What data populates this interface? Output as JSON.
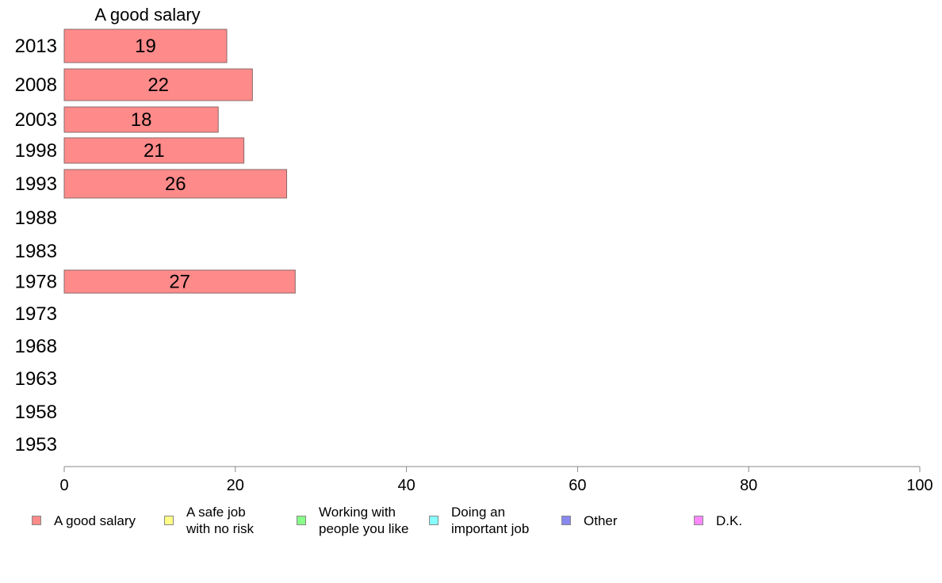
{
  "chart_data": {
    "type": "bar",
    "orientation": "horizontal",
    "title": "A good salary",
    "categories": [
      "2013",
      "2008",
      "2003",
      "1998",
      "1993",
      "1988",
      "1983",
      "1978",
      "1973",
      "1968",
      "1963",
      "1958",
      "1953"
    ],
    "series": [
      {
        "name": "A good salary",
        "values": [
          19,
          22,
          18,
          21,
          26,
          null,
          null,
          27,
          null,
          null,
          null,
          null,
          null
        ]
      }
    ],
    "xlim": [
      0,
      100
    ],
    "xticks": [
      "0",
      "20",
      "40",
      "60",
      "80",
      "100"
    ],
    "grid": false,
    "legend_position": "bottom",
    "legend": [
      {
        "label": "A good salary",
        "color": "#ff8a8a"
      },
      {
        "label": "A safe job\nwith no risk",
        "color": "#ffff88"
      },
      {
        "label": "Working with\npeople you like",
        "color": "#88ff88"
      },
      {
        "label": "Doing an\nimportant job",
        "color": "#88ffff"
      },
      {
        "label": "Other",
        "color": "#8888ee"
      },
      {
        "label": "D.K.",
        "color": "#ff88ff"
      }
    ]
  }
}
